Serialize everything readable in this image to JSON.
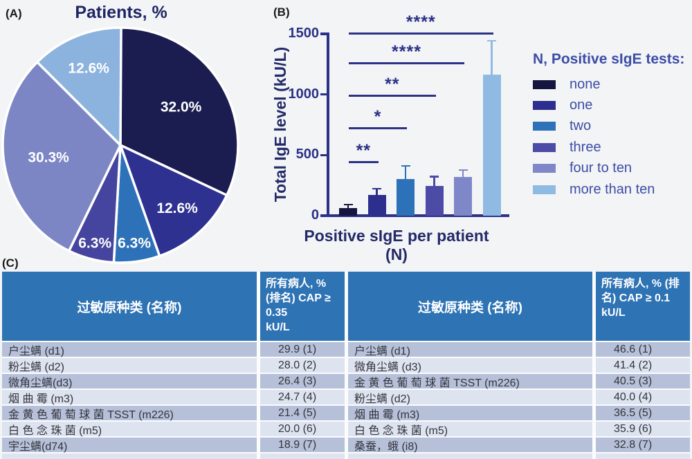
{
  "panel_labels": {
    "a": "(A)",
    "b": "(B)",
    "c": "(C)"
  },
  "chart_data": [
    {
      "type": "pie",
      "title": "Patients, %",
      "categories": [
        "none",
        "one",
        "two",
        "three",
        "four to ten",
        "more than ten"
      ],
      "values": [
        32.0,
        12.6,
        6.3,
        6.3,
        30.3,
        12.6
      ],
      "slice_labels": [
        "32.0%",
        "12.6%",
        "6.3%",
        "6.3%",
        "30.3%",
        "12.6%"
      ],
      "colors": [
        "#1b1d51",
        "#2e3190",
        "#2d72b8",
        "#45449e",
        "#7d86c5",
        "#8cb3dd"
      ],
      "layout": "start at 12 o'clock, clockwise, white slice borders"
    },
    {
      "type": "bar",
      "ylabel": "Total IgE level (kU/L)",
      "xlabel": "Positive sIgE per patient (N)",
      "ylim": [
        0,
        1500
      ],
      "yticks": [
        "0",
        "500",
        "1000",
        "1500"
      ],
      "categories": [
        "none",
        "one",
        "two",
        "three",
        "four to ten",
        "more than ten"
      ],
      "values": [
        65,
        173,
        305,
        243,
        320,
        1165
      ],
      "error_upper": [
        85,
        215,
        405,
        315,
        370,
        1435
      ],
      "colors": [
        "#14163f",
        "#2d2f8f",
        "#2d72b8",
        "#4c4ba5",
        "#7e88c9",
        "#8fbbe3"
      ],
      "significance": [
        {
          "label": "**",
          "pair": [
            "none",
            "one"
          ],
          "y": 433
        },
        {
          "label": "*",
          "pair": [
            "none",
            "two"
          ],
          "y": 713
        },
        {
          "label": "**",
          "pair": [
            "none",
            "three"
          ],
          "y": 981
        },
        {
          "label": "****",
          "pair": [
            "none",
            "four to ten"
          ],
          "y": 1249
        },
        {
          "label": "****",
          "pair": [
            "none",
            "more than ten"
          ],
          "y": 1494
        }
      ],
      "legend_title": "N, Positive sIgE tests:",
      "legend_labels": [
        "none",
        "one",
        "two",
        "three",
        "four to ten",
        "more than ten"
      ],
      "legend_position": "right",
      "axis_color": "#2b3186",
      "legend_text_color": "#3c4da6",
      "grid": false
    }
  ],
  "table": {
    "header": {
      "col1": "过敏原种类 (名称)",
      "col2": "所有病人, %\n(排名)   CAP ≥\n 0.35\nkU/L",
      "col3": "过敏原种类 (名称)",
      "col4": "所有病人, % (排\n名)   CAP ≥ 0.1\nkU/L",
      "bg": "#2e73b4"
    },
    "row_colors": {
      "odd": "#b6c0d9",
      "even": "#dde3ef"
    },
    "rows": [
      {
        "left_name": "户尘螨 (d1)",
        "left_value": "29.9 (1)",
        "right_name": "户尘螨 (d1)",
        "right_value": "46.6 (1)"
      },
      {
        "left_name": "粉尘螨 (d2)",
        "left_value": "28.0 (2)",
        "right_name": "微角尘螨 (d3)",
        "right_value": "41.4 (2)"
      },
      {
        "left_name": "微角尘螨(d3)",
        "left_value": "26.4 (3)",
        "right_name": "金 黄 色 葡 萄 球 菌 TSST (m226)",
        "right_value": "40.5 (3)"
      },
      {
        "left_name": "烟 曲 霉 (m3)",
        "left_value": "24.7 (4)",
        "right_name": "粉尘螨 (d2)",
        "right_value": "40.0 (4)"
      },
      {
        "left_name": "金 黄 色 葡 萄 球 菌 TSST (m226)",
        "left_value": "21.4 (5)",
        "right_name": "烟 曲 霉 (m3)",
        "right_value": "36.5 (5)"
      },
      {
        "left_name": "白 色 念 珠 菌 (m5)",
        "left_value": "20.0 (6)",
        "right_name": "白 色 念 珠 菌 (m5)",
        "right_value": "35.9 (6)"
      },
      {
        "left_name": "宇尘螨(d74)",
        "left_value": "18.9 (7)",
        "right_name": "桑蚕，蛾 (i8)",
        "right_value": "32.8 (7)"
      },
      {
        "left_name": "",
        "left_value": "",
        "right_name": "",
        "right_value": "",
        "partial": true
      }
    ]
  }
}
